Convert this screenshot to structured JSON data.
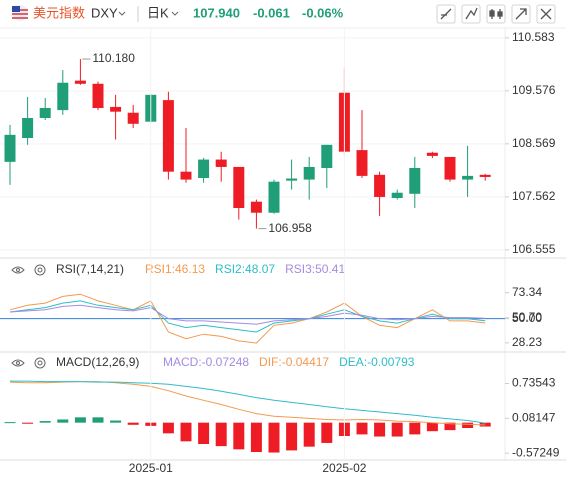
{
  "header": {
    "name": "美元指数",
    "symbol": "DXY",
    "period": "日K",
    "price": "107.940",
    "change": "-0.061",
    "change_pct": "-0.06%"
  },
  "chart_data": [
    {
      "type": "candlestick",
      "up_color": "#1f9e78",
      "down_color": "#ee1c25",
      "open": [
        108.227,
        108.68,
        109.06,
        109.21,
        109.77,
        109.71,
        109.27,
        109.16,
        108.99,
        109.4,
        108.04,
        107.92,
        108.27,
        108.13,
        107.47,
        107.26,
        107.87,
        107.89,
        108.11,
        109.54,
        108.45,
        107.98,
        107.54,
        107.62,
        108.4,
        108.32,
        107.89,
        107.98
      ],
      "high": [
        108.93,
        109.46,
        109.44,
        109.97,
        110.18,
        109.75,
        109.5,
        109.31,
        109.52,
        109.56,
        108.87,
        108.3,
        108.42,
        108.13,
        107.51,
        107.89,
        108.27,
        108.32,
        108.55,
        110.01,
        109.21,
        108.04,
        107.7,
        108.32,
        108.42,
        108.32,
        108.53,
        108.0
      ],
      "low": [
        107.79,
        108.55,
        109.02,
        109.12,
        109.69,
        109.21,
        108.65,
        108.87,
        108.97,
        107.89,
        107.83,
        107.83,
        107.85,
        107.13,
        106.958,
        107.24,
        107.7,
        107.51,
        107.73,
        108.36,
        107.92,
        107.2,
        107.51,
        107.35,
        108.3,
        107.85,
        107.56,
        107.87
      ],
      "close": [
        108.74,
        109.06,
        109.25,
        109.73,
        109.71,
        109.25,
        109.18,
        108.95,
        109.5,
        108.04,
        107.89,
        108.27,
        108.13,
        107.35,
        107.26,
        107.85,
        107.91,
        108.13,
        108.55,
        108.42,
        107.96,
        107.56,
        107.64,
        108.11,
        108.34,
        107.89,
        107.96,
        107.94
      ],
      "max_label": {
        "value": 110.18,
        "label": "110.180"
      },
      "min_label": {
        "value": 106.958,
        "label": "106.958"
      },
      "ylim": [
        106.4,
        110.77
      ],
      "yticks": [
        110.583,
        109.576,
        108.569,
        107.562,
        106.555
      ],
      "grid": true
    },
    {
      "type": "line",
      "title": "RSI(7,14,21)",
      "ylim": [
        20,
        83
      ],
      "yticks": [
        73.34,
        {
          "value": 50.7,
          "label": "50.70"
        },
        {
          "value": 50,
          "label": "50.00"
        },
        28.23
      ],
      "hline": 50,
      "hline_color": "#2f7fd8",
      "series": [
        {
          "name": "RSI1:46.13",
          "color": "#f39a4f",
          "values": [
            58,
            62,
            64,
            70,
            72,
            66,
            62,
            58,
            66,
            38,
            32,
            36,
            34,
            30,
            28,
            44,
            46,
            50,
            56,
            64,
            52,
            44,
            42,
            50,
            58,
            48,
            48,
            46.13
          ]
        },
        {
          "name": "RSI2:48.07",
          "color": "#2fbdc8",
          "values": [
            56,
            58,
            60,
            64,
            66,
            62,
            60,
            58,
            62,
            46,
            42,
            44,
            42,
            40,
            38,
            46,
            48,
            50,
            54,
            58,
            52,
            48,
            46,
            50,
            54,
            50,
            50,
            48.07
          ]
        },
        {
          "name": "RSI3:50.41",
          "color": "#a58be0",
          "values": [
            56,
            57,
            58,
            61,
            62,
            60,
            58,
            57,
            60,
            50,
            48,
            48,
            47,
            46,
            45,
            48,
            49,
            50,
            52,
            55,
            53,
            50,
            49,
            50,
            52,
            51,
            51,
            50.41
          ]
        }
      ]
    },
    {
      "type": "macd",
      "title": "MACD(12,26,9)",
      "ylim": [
        -0.7,
        0.95
      ],
      "yticks": [
        0.73543,
        0.08147,
        -0.57249
      ],
      "up_color": "#1f9e78",
      "down_color": "#ee1c25",
      "categories": [
        null,
        null,
        null,
        null,
        null,
        null,
        null,
        null,
        "2025-01",
        null,
        null,
        null,
        null,
        null,
        null,
        null,
        null,
        null,
        null,
        "2025-02",
        null,
        null,
        null,
        null,
        null,
        null,
        null,
        null
      ],
      "histogram": {
        "name": "MACD:-0.07248",
        "color": "#a58be0",
        "values": [
          0.01,
          -0.02,
          0.03,
          0.06,
          0.1,
          0.1,
          0.04,
          -0.04,
          -0.06,
          -0.2,
          -0.35,
          -0.4,
          -0.44,
          -0.5,
          -0.55,
          -0.56,
          -0.52,
          -0.45,
          -0.38,
          -0.25,
          -0.22,
          -0.26,
          -0.26,
          -0.22,
          -0.16,
          -0.14,
          -0.1,
          -0.07248
        ]
      },
      "series": [
        {
          "name": "DIF:-0.04417",
          "color": "#f39a4f",
          "values": [
            0.76,
            0.75,
            0.75,
            0.76,
            0.77,
            0.77,
            0.75,
            0.72,
            0.68,
            0.6,
            0.5,
            0.42,
            0.34,
            0.25,
            0.17,
            0.12,
            0.1,
            0.08,
            0.06,
            0.05,
            0.06,
            0.05,
            0.03,
            0.02,
            0.0,
            -0.02,
            -0.03,
            -0.04417
          ]
        },
        {
          "name": "DEA:-0.00793",
          "color": "#2fbdc8",
          "values": [
            0.78,
            0.78,
            0.77,
            0.77,
            0.77,
            0.76,
            0.76,
            0.75,
            0.74,
            0.72,
            0.68,
            0.64,
            0.59,
            0.53,
            0.47,
            0.42,
            0.38,
            0.34,
            0.3,
            0.26,
            0.23,
            0.2,
            0.17,
            0.14,
            0.1,
            0.07,
            0.04,
            -0.00793
          ]
        }
      ]
    }
  ]
}
